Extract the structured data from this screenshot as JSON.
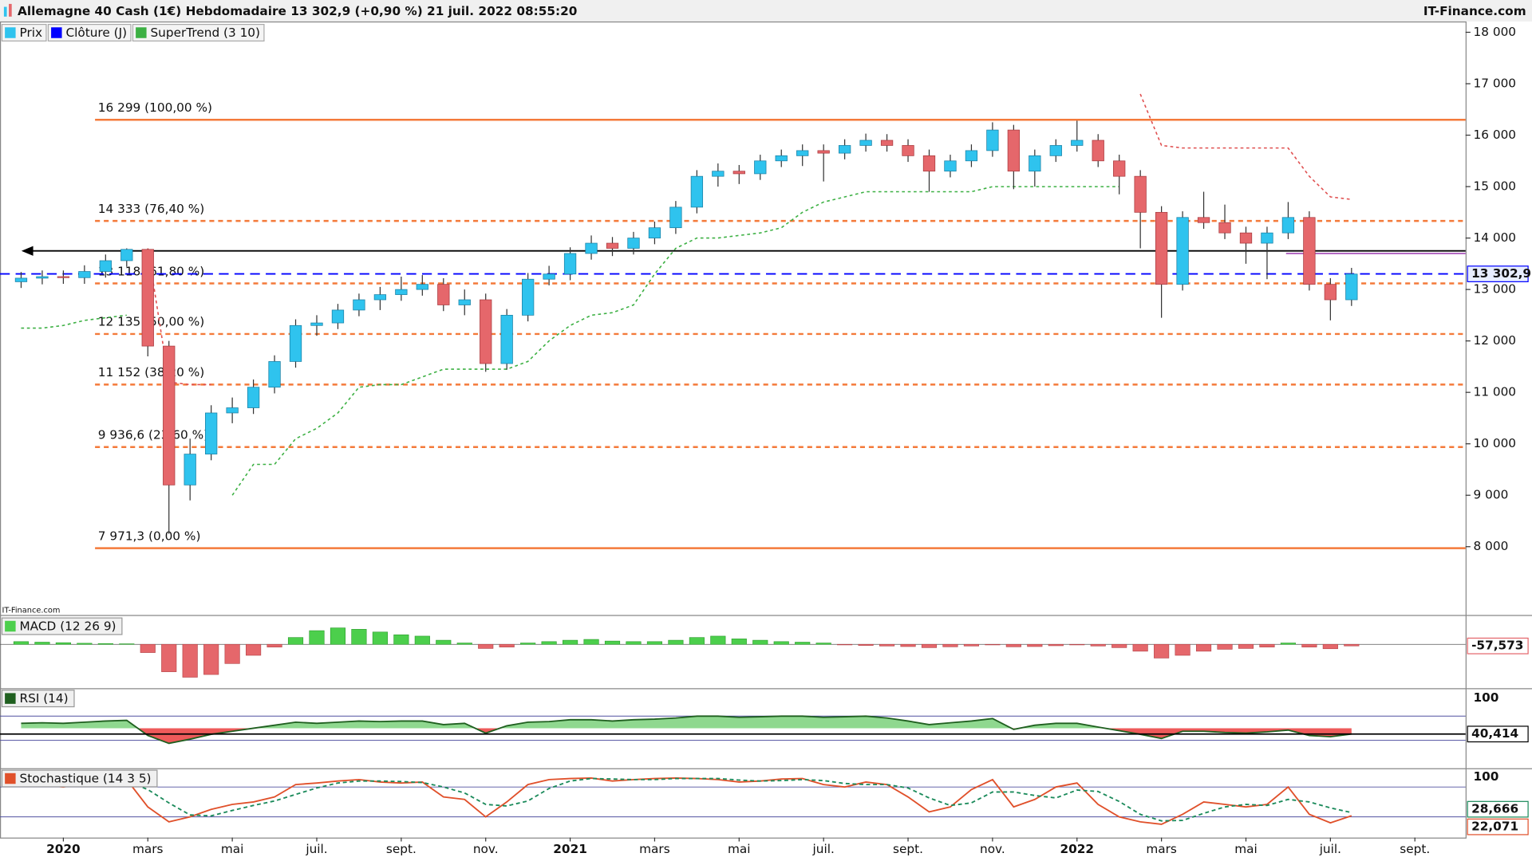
{
  "chart_data": [
    {
      "type": "candlestick",
      "title": "Allemagne 40 Cash (1€) Hebdomadaire 13 302,9 (+0,90 %) 21 juil. 2022 08:55:20",
      "source": "IT-Finance.com",
      "watermark": "IT-Finance.com",
      "legend": [
        {
          "name": "Prix",
          "color": "#2fc3ee"
        },
        {
          "name": "Clôture (J)",
          "color": "#0000ff"
        },
        {
          "name": "SuperTrend (3 10)",
          "color": "#3cb043"
        }
      ],
      "up_color": "#2fc3ee",
      "down_color": "#e5676b",
      "xlim": [
        -1.5,
        33.2
      ],
      "xticks": [
        {
          "value": 0,
          "label": "2020"
        },
        {
          "value": 2,
          "label": "mars"
        },
        {
          "value": 4,
          "label": "mai"
        },
        {
          "value": 6,
          "label": "juil."
        },
        {
          "value": 8,
          "label": "sept."
        },
        {
          "value": 10,
          "label": "nov."
        },
        {
          "value": 12,
          "label": "2021"
        },
        {
          "value": 14,
          "label": "mars"
        },
        {
          "value": 16,
          "label": "mai"
        },
        {
          "value": 18,
          "label": "juil."
        },
        {
          "value": 20,
          "label": "sept."
        },
        {
          "value": 22,
          "label": "nov."
        },
        {
          "value": 24,
          "label": "2022"
        },
        {
          "value": 26,
          "label": "mars"
        },
        {
          "value": 28,
          "label": "mai"
        },
        {
          "value": 30,
          "label": "juil."
        },
        {
          "value": 32,
          "label": "sept."
        }
      ],
      "ylim": [
        6710,
        18210
      ],
      "yticks": [
        {
          "value": 18000,
          "label": "18 000"
        },
        {
          "value": 17000,
          "label": "17 000"
        },
        {
          "value": 16000,
          "label": "16 000"
        },
        {
          "value": 15000,
          "label": "15 000"
        },
        {
          "value": 14000,
          "label": "14 000"
        },
        {
          "value": 13000,
          "label": "13 000"
        },
        {
          "value": 12000,
          "label": "12 000"
        },
        {
          "value": 11000,
          "label": "11 000"
        },
        {
          "value": 10000,
          "label": "10 000"
        },
        {
          "value": 9000,
          "label": "9 000"
        },
        {
          "value": 8000,
          "label": "8 000"
        }
      ],
      "x": [
        -1,
        -0.5,
        0,
        0.5,
        1,
        1.5,
        2,
        2.5,
        3,
        3.5,
        4,
        4.5,
        5,
        5.5,
        6,
        6.5,
        7,
        7.5,
        8,
        8.5,
        9,
        9.5,
        10,
        10.5,
        11,
        11.5,
        12,
        12.5,
        13,
        13.5,
        14,
        14.5,
        15,
        15.5,
        16,
        16.5,
        17,
        17.5,
        18,
        18.5,
        19,
        19.5,
        20,
        20.5,
        21,
        21.5,
        22,
        22.5,
        23,
        23.5,
        24,
        24.5,
        25,
        25.5,
        26,
        26.5,
        27,
        27.5,
        28,
        28.5,
        29,
        29.5,
        30,
        30.5
      ],
      "open": [
        13150,
        13220,
        13250,
        13230,
        13350,
        13560,
        13780,
        11900,
        9200,
        9800,
        10600,
        10700,
        11100,
        11600,
        12300,
        12350,
        12600,
        12800,
        12900,
        13000,
        13100,
        12700,
        12800,
        11560,
        12500,
        13200,
        13300,
        13700,
        13900,
        13800,
        14000,
        14200,
        14600,
        15200,
        15300,
        15250,
        15500,
        15600,
        15700,
        15650,
        15800,
        15900,
        15800,
        15600,
        15300,
        15500,
        15700,
        16100,
        15300,
        15600,
        15800,
        15900,
        15500,
        15200,
        14500,
        13100,
        14400,
        14300,
        14100,
        13900,
        14100,
        14400,
        13100,
        12800
      ],
      "high": [
        13340,
        13370,
        13370,
        13470,
        13680,
        13800,
        13790,
        12000,
        10100,
        10750,
        10900,
        11250,
        11720,
        12420,
        12500,
        12720,
        12920,
        13050,
        13250,
        13280,
        13220,
        13000,
        12920,
        12620,
        13320,
        13460,
        13820,
        14050,
        14020,
        14120,
        14320,
        14720,
        15320,
        15450,
        15420,
        15620,
        15720,
        15820,
        15820,
        15920,
        16030,
        16020,
        15920,
        15720,
        15620,
        15820,
        16250,
        16200,
        15720,
        15920,
        16280,
        16020,
        15620,
        15320,
        14620,
        14520,
        14900,
        14650,
        14220,
        14220,
        14700,
        14520,
        13220,
        13420
      ],
      "low": [
        13030,
        13100,
        13110,
        13110,
        13230,
        13440,
        11700,
        8250,
        8900,
        9680,
        10400,
        10580,
        10980,
        11480,
        12100,
        12230,
        12480,
        12600,
        12780,
        12880,
        12580,
        12500,
        11400,
        11440,
        12380,
        13080,
        13180,
        13580,
        13650,
        13680,
        13880,
        14080,
        14480,
        15000,
        15050,
        15130,
        15380,
        15400,
        15100,
        15530,
        15680,
        15680,
        15480,
        14900,
        15180,
        15380,
        15580,
        14950,
        15000,
        15480,
        15680,
        15380,
        14850,
        13800,
        12450,
        12980,
        14180,
        13980,
        13500,
        13200,
        13980,
        12980,
        12400,
        12680
      ],
      "close": [
        13220,
        13250,
        13230,
        13350,
        13560,
        13780,
        11900,
        9200,
        9800,
        10600,
        10700,
        11100,
        11600,
        12300,
        12350,
        12600,
        12800,
        12900,
        13000,
        13100,
        12700,
        12800,
        11560,
        12500,
        13200,
        13300,
        13700,
        13900,
        13800,
        14000,
        14200,
        14600,
        15200,
        15300,
        15250,
        15500,
        15600,
        15700,
        15650,
        15800,
        15900,
        15800,
        15600,
        15300,
        15500,
        15700,
        16100,
        15300,
        15600,
        15800,
        15900,
        15500,
        15200,
        14500,
        13100,
        14400,
        14300,
        14100,
        13900,
        14100,
        14400,
        13100,
        12800,
        13300
      ],
      "supertrend": {
        "up": {
          "color": "#3cb043",
          "values": [
            12250,
            12250,
            12300,
            12400,
            12450,
            12500,
            null,
            null,
            null,
            null,
            9000,
            9600,
            9600,
            10100,
            10300,
            10600,
            11100,
            11150,
            11150,
            11300,
            11450,
            11450,
            11450,
            11450,
            11600,
            12000,
            12300,
            12500,
            12550,
            12700,
            13300,
            13800,
            14000,
            14000,
            14050,
            14100,
            14200,
            14500,
            14700,
            14800,
            14900,
            14900,
            14900,
            14900,
            14900,
            14900,
            15000,
            15000,
            15000,
            15000,
            15000,
            15000,
            15000,
            null,
            null,
            null,
            null,
            null,
            null,
            null,
            null,
            null,
            null,
            null
          ]
        },
        "down": {
          "color": "#e05050",
          "values": [
            null,
            null,
            null,
            null,
            null,
            null,
            13800,
            11200,
            11150,
            11150,
            null,
            null,
            null,
            null,
            null,
            null,
            null,
            null,
            null,
            null,
            null,
            null,
            null,
            null,
            null,
            null,
            null,
            null,
            null,
            null,
            null,
            null,
            null,
            null,
            null,
            null,
            null,
            null,
            null,
            null,
            null,
            null,
            null,
            null,
            null,
            null,
            null,
            null,
            null,
            null,
            null,
            null,
            null,
            16800,
            15800,
            15750,
            15750,
            15750,
            15750,
            15750,
            15750,
            15200,
            14800,
            14750
          ]
        }
      },
      "fibonacci": [
        {
          "value": 16299,
          "label": "16 299 (100,00 %)",
          "dashed": false
        },
        {
          "value": 14333,
          "label": "14 333 (76,40 %)",
          "dashed": true
        },
        {
          "value": 13118,
          "label": "13 118 (61,80 %)",
          "dashed": true
        },
        {
          "value": 12135,
          "label": "12 135 (50,00 %)",
          "dashed": true
        },
        {
          "value": 11152,
          "label": "11 152 (38,20 %)",
          "dashed": true
        },
        {
          "value": 9936.6,
          "label": "9 936,6 (23,60 %)",
          "dashed": true
        },
        {
          "value": 7971.3,
          "label": "7 971,3 (0,00 %)",
          "dashed": false
        }
      ],
      "fib_color": "#f47a3a",
      "fib_from": 0.75,
      "reference_lines": [
        {
          "value": 13750,
          "color": "#000000",
          "from": -0.9,
          "arrow": true
        },
        {
          "value": 13700,
          "color": "#b060c0",
          "from": 28.95,
          "arrow": false
        }
      ],
      "current": {
        "value": 13302.9,
        "label": "13 302,9",
        "color": "#0000ff"
      }
    },
    {
      "type": "bar",
      "title": "MACD (12 26 9)",
      "xlim": [
        -1.5,
        33.2
      ],
      "ylim": [
        -1600,
        1000
      ],
      "up_color": "#4ccf4c",
      "down_color": "#e5676b",
      "x": [
        -1,
        -0.5,
        0,
        0.5,
        1,
        1.5,
        2,
        2.5,
        3,
        3.5,
        4,
        4.5,
        5,
        5.5,
        6,
        6.5,
        7,
        7.5,
        8,
        8.5,
        9,
        9.5,
        10,
        10.5,
        11,
        11.5,
        12,
        12.5,
        13,
        13.5,
        14,
        14.5,
        15,
        15.5,
        16,
        16.5,
        17,
        17.5,
        18,
        18.5,
        19,
        19.5,
        20,
        20.5,
        21,
        21.5,
        22,
        22.5,
        23,
        23.5,
        24,
        24.5,
        25,
        25.5,
        26,
        26.5,
        27,
        27.5,
        28,
        28.5,
        29,
        29.5,
        30,
        30.5
      ],
      "values": [
        100,
        80,
        60,
        40,
        30,
        20,
        -300,
        -1000,
        -1200,
        -1100,
        -700,
        -400,
        -100,
        250,
        500,
        600,
        550,
        450,
        350,
        300,
        150,
        50,
        -150,
        -100,
        50,
        100,
        150,
        180,
        120,
        100,
        100,
        150,
        250,
        300,
        200,
        150,
        100,
        80,
        50,
        -20,
        -40,
        -60,
        -80,
        -120,
        -90,
        -60,
        -20,
        -90,
        -80,
        -50,
        -20,
        -60,
        -120,
        -250,
        -500,
        -400,
        -250,
        -180,
        -150,
        -100,
        50,
        -100,
        -160,
        -57.573
      ],
      "current": {
        "value": -57.573,
        "label": "-57,573",
        "color": "#e5676b"
      }
    },
    {
      "type": "line",
      "title": "RSI (14)",
      "xlim": [
        -1.5,
        33.2
      ],
      "ylim": [
        -14.5,
        114.5
      ],
      "yticks": [
        100
      ],
      "levels": [
        30,
        70
      ],
      "fill_base": 50,
      "x": [
        -1,
        -0.5,
        0,
        0.5,
        1,
        1.5,
        2,
        2.5,
        3,
        3.5,
        4,
        4.5,
        5,
        5.5,
        6,
        6.5,
        7,
        7.5,
        8,
        8.5,
        9,
        9.5,
        10,
        10.5,
        11,
        11.5,
        12,
        12.5,
        13,
        13.5,
        14,
        14.5,
        15,
        15.5,
        16,
        16.5,
        17,
        17.5,
        18,
        18.5,
        19,
        19.5,
        20,
        20.5,
        21,
        21.5,
        22,
        22.5,
        23,
        23.5,
        24,
        24.5,
        25,
        25.5,
        26,
        26.5,
        27,
        27.5,
        28,
        28.5,
        29,
        29.5,
        30,
        30.5
      ],
      "series": [
        {
          "color": "#1f5f1f",
          "values": [
            58,
            59,
            58,
            60,
            62,
            63,
            38,
            25,
            32,
            40,
            45,
            50,
            55,
            60,
            58,
            60,
            62,
            61,
            62,
            62,
            56,
            58,
            42,
            54,
            60,
            61,
            64,
            64,
            62,
            64,
            65,
            67,
            70,
            70,
            68,
            69,
            70,
            70,
            68,
            69,
            70,
            67,
            62,
            56,
            59,
            62,
            66,
            48,
            55,
            58,
            58,
            52,
            46,
            40,
            33,
            45,
            45,
            43,
            42,
            44,
            47,
            38,
            36,
            40.414
          ]
        }
      ],
      "current": {
        "value": 40.414,
        "label": "40,414",
        "color": "#000000"
      }
    },
    {
      "type": "line",
      "title": "Stochastique (14 3 5)",
      "xlim": [
        -1.5,
        33.2
      ],
      "ylim": [
        -21.6,
        115.7
      ],
      "yticks": [
        100
      ],
      "levels": [
        20,
        80
      ],
      "x": [
        -1,
        -0.5,
        0,
        0.5,
        1,
        1.5,
        2,
        2.5,
        3,
        3.5,
        4,
        4.5,
        5,
        5.5,
        6,
        6.5,
        7,
        7.5,
        8,
        8.5,
        9,
        9.5,
        10,
        10.5,
        11,
        11.5,
        12,
        12.5,
        13,
        13.5,
        14,
        14.5,
        15,
        15.5,
        16,
        16.5,
        17,
        17.5,
        18,
        18.5,
        19,
        19.5,
        20,
        20.5,
        21,
        21.5,
        22,
        22.5,
        23,
        23.5,
        24,
        24.5,
        25,
        25.5,
        26,
        26.5,
        27,
        27.5,
        28,
        28.5,
        29,
        29.5,
        30,
        30.5
      ],
      "series": [
        {
          "color": "#e0502a",
          "dashed": false,
          "values": [
            90,
            85,
            80,
            88,
            92,
            95,
            40,
            10,
            20,
            35,
            45,
            50,
            60,
            85,
            88,
            92,
            95,
            90,
            88,
            90,
            60,
            55,
            20,
            50,
            85,
            95,
            97,
            98,
            92,
            95,
            97,
            98,
            97,
            95,
            90,
            92,
            96,
            97,
            85,
            80,
            90,
            85,
            60,
            30,
            40,
            75,
            95,
            40,
            55,
            80,
            88,
            45,
            20,
            10,
            5,
            25,
            50,
            45,
            40,
            45,
            80,
            25,
            8,
            22.071
          ],
          "current": {
            "value": 22.071,
            "label": "22,071"
          }
        },
        {
          "color": "#1a8a5a",
          "dashed": true,
          "values": [
            85,
            88,
            86,
            84,
            87,
            92,
            75,
            48,
            24,
            22,
            33,
            43,
            52,
            65,
            78,
            88,
            92,
            92,
            91,
            89,
            80,
            68,
            45,
            42,
            52,
            77,
            92,
            97,
            96,
            95,
            95,
            97,
            97,
            97,
            94,
            92,
            93,
            95,
            93,
            87,
            85,
            85,
            78,
            58,
            43,
            48,
            70,
            70,
            63,
            58,
            74,
            71,
            51,
            25,
            12,
            13,
            27,
            40,
            45,
            43,
            55,
            50,
            38,
            28.666
          ],
          "current": {
            "value": 28.666,
            "label": "28,666"
          }
        }
      ]
    }
  ]
}
